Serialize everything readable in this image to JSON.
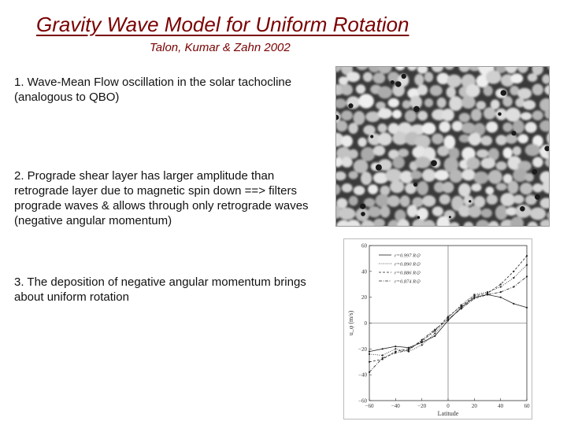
{
  "slide": {
    "title": "Gravity Wave Model for Uniform Rotation",
    "subtitle": "Talon, Kumar & Zahn 2002",
    "points": [
      "1. Wave-Mean Flow oscillation in the solar tachocline (analogous to QBO)",
      "2. Prograde shear layer has larger amplitude than retrograde layer due to magnetic spin down ==> filters prograde waves & allows through only retrograde waves (negative angular momentum)",
      "3. The deposition of negative angular momentum brings about uniform rotation"
    ],
    "colors": {
      "title": "#7a0000",
      "text": "#111111"
    }
  },
  "images": {
    "granulation": {
      "icon": "solar-granulation-image"
    }
  },
  "chart_data": {
    "type": "line",
    "title": "",
    "xlabel": "Latitude",
    "ylabel": "u_φ (m/s)",
    "xlim": [
      -60,
      60
    ],
    "ylim": [
      -60,
      60
    ],
    "xticks": [
      "−60",
      "−40",
      "−20",
      "0",
      "20",
      "40",
      "60"
    ],
    "yticks": [
      "60",
      "40",
      "20",
      "0",
      "−20",
      "−40",
      "−60"
    ],
    "grid": false,
    "legend_position": "top-left",
    "x": [
      -60,
      -50,
      -40,
      -30,
      -20,
      -10,
      0,
      10,
      20,
      30,
      40,
      50,
      60
    ],
    "series": [
      {
        "name": "r=0.997 R⊙",
        "dash": "solid",
        "values": [
          -22,
          -20,
          -18,
          -19,
          -15,
          -10,
          2,
          12,
          20,
          22,
          20,
          15,
          12
        ]
      },
      {
        "name": "r=0.890 R⊙",
        "dash": "dot",
        "values": [
          -24,
          -25,
          -20,
          -22,
          -17,
          -8,
          4,
          14,
          22,
          24,
          28,
          35,
          45
        ]
      },
      {
        "name": "r=0.886 R⊙",
        "dash": "dash",
        "values": [
          -30,
          -28,
          -22,
          -20,
          -14,
          -6,
          5,
          13,
          21,
          23,
          30,
          40,
          52
        ]
      },
      {
        "name": "r=0.874 R⊙",
        "dash": "dashdot",
        "values": [
          -38,
          -27,
          -23,
          -21,
          -13,
          -5,
          3,
          11,
          19,
          22,
          24,
          28,
          36
        ]
      }
    ]
  }
}
